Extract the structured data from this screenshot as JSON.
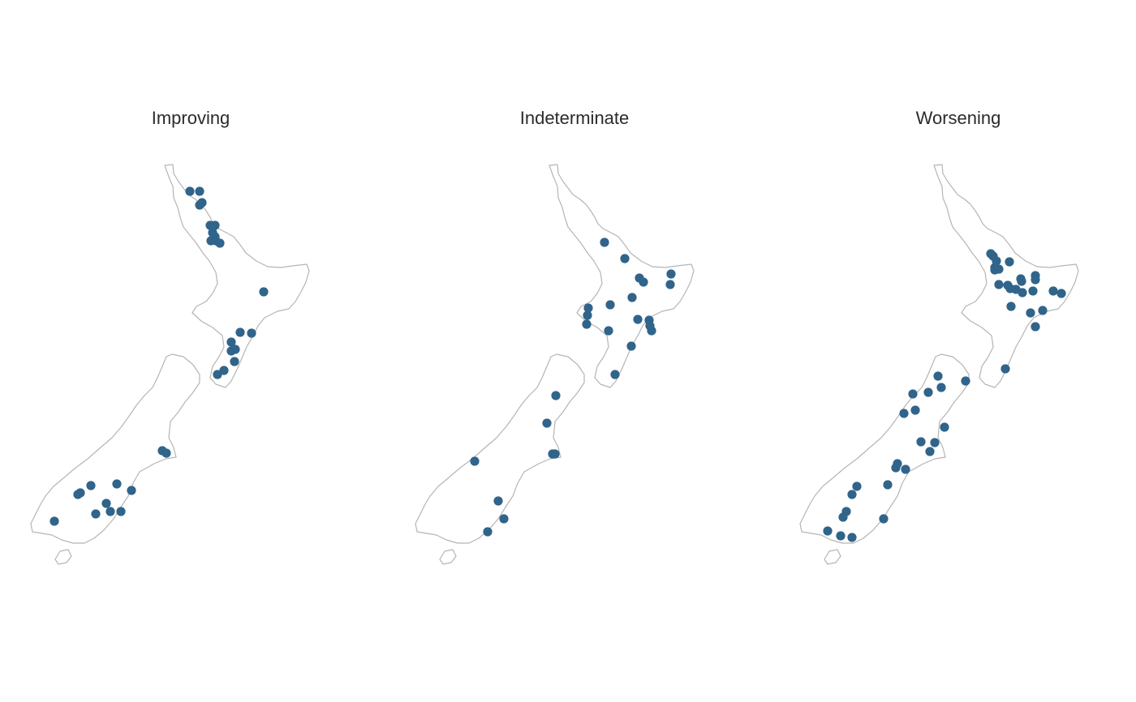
{
  "colors": {
    "point": "#30648a",
    "coast": "#b5b5b5",
    "title": "#2b2b2b"
  },
  "panels": [
    {
      "title": "Improving",
      "points": [
        [
          234,
          236
        ],
        [
          246,
          236
        ],
        [
          246,
          253
        ],
        [
          249,
          250
        ],
        [
          259,
          278
        ],
        [
          265,
          278
        ],
        [
          262,
          287
        ],
        [
          265,
          292
        ],
        [
          260,
          297
        ],
        [
          266,
          297
        ],
        [
          271,
          300
        ],
        [
          325,
          360
        ],
        [
          296,
          410
        ],
        [
          310,
          411
        ],
        [
          285,
          422
        ],
        [
          285,
          433
        ],
        [
          290,
          431
        ],
        [
          289,
          446
        ],
        [
          276,
          457
        ],
        [
          268,
          462
        ],
        [
          200,
          556
        ],
        [
          205,
          559
        ],
        [
          112,
          599
        ],
        [
          144,
          597
        ],
        [
          99,
          608
        ],
        [
          96,
          610
        ],
        [
          162,
          605
        ],
        [
          131,
          621
        ],
        [
          136,
          631
        ],
        [
          149,
          631
        ],
        [
          118,
          634
        ],
        [
          67,
          643
        ]
      ]
    },
    {
      "title": "Indeterminate",
      "points": [
        [
          745,
          299
        ],
        [
          770,
          319
        ],
        [
          827,
          338
        ],
        [
          788,
          343
        ],
        [
          793,
          348
        ],
        [
          826,
          351
        ],
        [
          779,
          367
        ],
        [
          752,
          376
        ],
        [
          725,
          380
        ],
        [
          724,
          389
        ],
        [
          786,
          394
        ],
        [
          800,
          395
        ],
        [
          801,
          402
        ],
        [
          803,
          408
        ],
        [
          723,
          400
        ],
        [
          750,
          408
        ],
        [
          778,
          427
        ],
        [
          758,
          462
        ],
        [
          685,
          488
        ],
        [
          674,
          522
        ],
        [
          681,
          560
        ],
        [
          684,
          560
        ],
        [
          585,
          569
        ],
        [
          614,
          618
        ],
        [
          621,
          640
        ],
        [
          601,
          656
        ]
      ]
    },
    {
      "title": "Worsening",
      "points": [
        [
          1221,
          313
        ],
        [
          1224,
          316
        ],
        [
          1228,
          322
        ],
        [
          1244,
          323
        ],
        [
          1226,
          330
        ],
        [
          1231,
          332
        ],
        [
          1226,
          333
        ],
        [
          1276,
          340
        ],
        [
          1258,
          344
        ],
        [
          1276,
          345
        ],
        [
          1259,
          347
        ],
        [
          1231,
          351
        ],
        [
          1242,
          352
        ],
        [
          1245,
          356
        ],
        [
          1252,
          357
        ],
        [
          1260,
          361
        ],
        [
          1273,
          359
        ],
        [
          1298,
          359
        ],
        [
          1308,
          362
        ],
        [
          1246,
          378
        ],
        [
          1270,
          386
        ],
        [
          1285,
          383
        ],
        [
          1276,
          403
        ],
        [
          1239,
          455
        ],
        [
          1156,
          464
        ],
        [
          1190,
          470
        ],
        [
          1125,
          486
        ],
        [
          1144,
          484
        ],
        [
          1160,
          478
        ],
        [
          1114,
          510
        ],
        [
          1128,
          506
        ],
        [
          1164,
          527
        ],
        [
          1135,
          545
        ],
        [
          1152,
          546
        ],
        [
          1146,
          557
        ],
        [
          1106,
          572
        ],
        [
          1104,
          577
        ],
        [
          1116,
          579
        ],
        [
          1094,
          598
        ],
        [
          1056,
          600
        ],
        [
          1050,
          610
        ],
        [
          1043,
          631
        ],
        [
          1039,
          638
        ],
        [
          1089,
          640
        ],
        [
          1020,
          655
        ],
        [
          1036,
          661
        ],
        [
          1050,
          663
        ]
      ]
    }
  ]
}
